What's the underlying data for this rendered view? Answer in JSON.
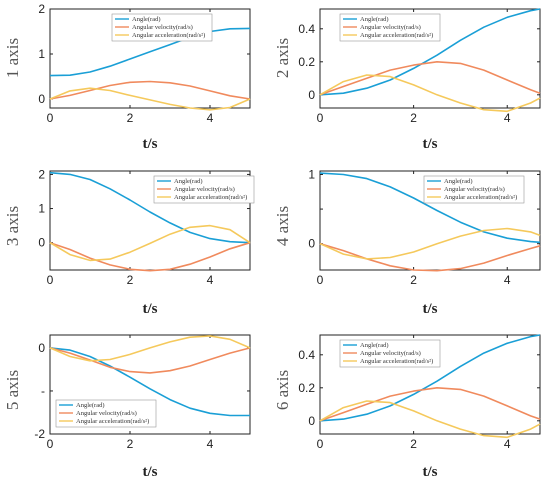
{
  "colors": {
    "angle": "#1a9fd6",
    "velocity": "#f08a5d",
    "acceleration": "#f5c95c"
  },
  "chart_data": [
    {
      "type": "line",
      "ylabel": "1 axis",
      "xlabel": "t/s",
      "xlim": [
        0,
        5
      ],
      "ylim": [
        -0.2,
        2
      ],
      "xticks": [
        0,
        2,
        4
      ],
      "yticks": [
        0,
        1,
        2
      ],
      "ytick_labels": [
        "0",
        "1",
        "2"
      ],
      "legend_position": "top-right",
      "x": [
        0,
        0.5,
        1,
        1.5,
        2,
        2.5,
        3,
        3.5,
        4,
        4.5,
        5
      ],
      "series": [
        {
          "name": "Angle(rad)",
          "color": "#1a9fd6",
          "values": [
            0.52,
            0.53,
            0.6,
            0.73,
            0.89,
            1.05,
            1.21,
            1.37,
            1.5,
            1.56,
            1.57
          ]
        },
        {
          "name": "Angular velocity(rad/s)",
          "color": "#f08a5d",
          "values": [
            0,
            0.08,
            0.19,
            0.3,
            0.37,
            0.39,
            0.36,
            0.29,
            0.18,
            0.07,
            0
          ]
        },
        {
          "name": "Angular acceleration(rad/s²)",
          "color": "#f5c95c",
          "values": [
            0,
            0.18,
            0.24,
            0.19,
            0.08,
            -0.02,
            -0.12,
            -0.2,
            -0.24,
            -0.19,
            0
          ]
        }
      ]
    },
    {
      "type": "line",
      "ylabel": "2 axis",
      "xlabel": "t/s",
      "xlim": [
        0,
        4.7
      ],
      "ylim": [
        -0.08,
        0.52
      ],
      "xticks": [
        0,
        2,
        4
      ],
      "yticks": [
        0,
        0.2,
        0.4
      ],
      "ytick_labels": [
        "0",
        "0.2",
        "0.4"
      ],
      "legend_position": "top-right",
      "x": [
        0,
        0.5,
        1,
        1.5,
        2,
        2.5,
        3,
        3.5,
        4,
        4.5,
        4.7
      ],
      "series": [
        {
          "name": "Angle(rad)",
          "color": "#1a9fd6",
          "values": [
            0,
            0.01,
            0.04,
            0.09,
            0.16,
            0.24,
            0.33,
            0.41,
            0.47,
            0.51,
            0.52
          ]
        },
        {
          "name": "Angular velocity(rad/s)",
          "color": "#f08a5d",
          "values": [
            0,
            0.05,
            0.1,
            0.15,
            0.18,
            0.2,
            0.19,
            0.15,
            0.09,
            0.03,
            0.01
          ]
        },
        {
          "name": "Angular acceleration(rad/s²)",
          "color": "#f5c95c",
          "values": [
            0,
            0.08,
            0.12,
            0.11,
            0.06,
            0,
            -0.05,
            -0.09,
            -0.1,
            -0.05,
            -0.02
          ]
        }
      ]
    },
    {
      "type": "line",
      "ylabel": "3 axis",
      "xlabel": "t/s",
      "xlim": [
        0,
        5
      ],
      "ylim": [
        -0.8,
        2.1
      ],
      "xticks": [
        0,
        2,
        4
      ],
      "yticks": [
        0,
        1,
        2
      ],
      "ytick_labels": [
        "0",
        "1",
        "2"
      ],
      "legend_position": "top-right",
      "x": [
        0,
        0.5,
        1,
        1.5,
        2,
        2.5,
        3,
        3.5,
        4,
        4.5,
        5
      ],
      "series": [
        {
          "name": "Angle(rad)",
          "color": "#1a9fd6",
          "values": [
            2.05,
            2.0,
            1.85,
            1.58,
            1.25,
            0.9,
            0.58,
            0.3,
            0.12,
            0.03,
            0
          ]
        },
        {
          "name": "Angular velocity(rad/s)",
          "color": "#f08a5d",
          "values": [
            0,
            -0.2,
            -0.45,
            -0.65,
            -0.78,
            -0.82,
            -0.78,
            -0.63,
            -0.42,
            -0.18,
            0
          ]
        },
        {
          "name": "Angular acceleration(rad/s²)",
          "color": "#f5c95c",
          "values": [
            0,
            -0.35,
            -0.52,
            -0.48,
            -0.28,
            -0.02,
            0.25,
            0.45,
            0.5,
            0.38,
            0
          ]
        }
      ]
    },
    {
      "type": "line",
      "ylabel": "4 axis",
      "xlabel": "t/s",
      "xlim": [
        0,
        4.7
      ],
      "ylim": [
        -0.38,
        1.05
      ],
      "xticks": [
        0,
        2,
        4
      ],
      "yticks": [
        0,
        0.5,
        1
      ],
      "ytick_labels": [
        "0",
        "",
        "1"
      ],
      "legend_position": "top-right",
      "x": [
        0,
        0.5,
        1,
        1.5,
        2,
        2.5,
        3,
        3.5,
        4,
        4.5,
        4.7
      ],
      "series": [
        {
          "name": "Angle(rad)",
          "color": "#1a9fd6",
          "values": [
            1.02,
            1.0,
            0.94,
            0.82,
            0.66,
            0.48,
            0.31,
            0.17,
            0.08,
            0.03,
            0.02
          ]
        },
        {
          "name": "Angular velocity(rad/s)",
          "color": "#f08a5d",
          "values": [
            0,
            -0.1,
            -0.22,
            -0.32,
            -0.38,
            -0.39,
            -0.36,
            -0.28,
            -0.17,
            -0.07,
            -0.03
          ]
        },
        {
          "name": "Angular acceleration(rad/s²)",
          "color": "#f5c95c",
          "values": [
            0,
            -0.15,
            -0.22,
            -0.2,
            -0.12,
            0,
            0.11,
            0.19,
            0.22,
            0.17,
            0.12
          ]
        }
      ]
    },
    {
      "type": "line",
      "ylabel": "5 axis",
      "xlabel": "t/s",
      "xlim": [
        0,
        5
      ],
      "ylim": [
        -2,
        0.3
      ],
      "xticks": [
        0,
        2,
        4
      ],
      "yticks": [
        0,
        -1,
        -2
      ],
      "ytick_labels": [
        "0",
        "-",
        "-2"
      ],
      "legend_position": "bottom-left",
      "x": [
        0,
        0.5,
        1,
        1.5,
        2,
        2.5,
        3,
        3.5,
        4,
        4.5,
        5
      ],
      "series": [
        {
          "name": "Angle(rad)",
          "color": "#1a9fd6",
          "values": [
            0,
            -0.05,
            -0.2,
            -0.42,
            -0.68,
            -0.95,
            -1.2,
            -1.4,
            -1.52,
            -1.57,
            -1.57
          ]
        },
        {
          "name": "Angular velocity(rad/s)",
          "color": "#f08a5d",
          "values": [
            0,
            -0.12,
            -0.28,
            -0.45,
            -0.55,
            -0.58,
            -0.53,
            -0.42,
            -0.27,
            -0.12,
            0
          ]
        },
        {
          "name": "Angular acceleration(rad/s²)",
          "color": "#f5c95c",
          "values": [
            0,
            -0.2,
            -0.3,
            -0.27,
            -0.15,
            0,
            0.14,
            0.25,
            0.28,
            0.2,
            0
          ]
        }
      ]
    },
    {
      "type": "line",
      "ylabel": "6 axis",
      "xlabel": "t/s",
      "xlim": [
        0,
        4.7
      ],
      "ylim": [
        -0.08,
        0.52
      ],
      "xticks": [
        0,
        2,
        4
      ],
      "yticks": [
        0,
        0.2,
        0.4
      ],
      "ytick_labels": [
        "0",
        "0.2",
        "0.4"
      ],
      "legend_position": "top-right",
      "x": [
        0,
        0.5,
        1,
        1.5,
        2,
        2.5,
        3,
        3.5,
        4,
        4.5,
        4.7
      ],
      "series": [
        {
          "name": "Angle(rad)",
          "color": "#1a9fd6",
          "values": [
            0,
            0.01,
            0.04,
            0.09,
            0.16,
            0.24,
            0.33,
            0.41,
            0.47,
            0.51,
            0.52
          ]
        },
        {
          "name": "Angular velocity(rad/s)",
          "color": "#f08a5d",
          "values": [
            0,
            0.05,
            0.1,
            0.15,
            0.18,
            0.2,
            0.19,
            0.15,
            0.09,
            0.03,
            0.01
          ]
        },
        {
          "name": "Angular acceleration(rad/s²)",
          "color": "#f5c95c",
          "values": [
            0,
            0.08,
            0.12,
            0.11,
            0.06,
            0,
            -0.05,
            -0.09,
            -0.1,
            -0.05,
            -0.02
          ]
        }
      ]
    }
  ]
}
